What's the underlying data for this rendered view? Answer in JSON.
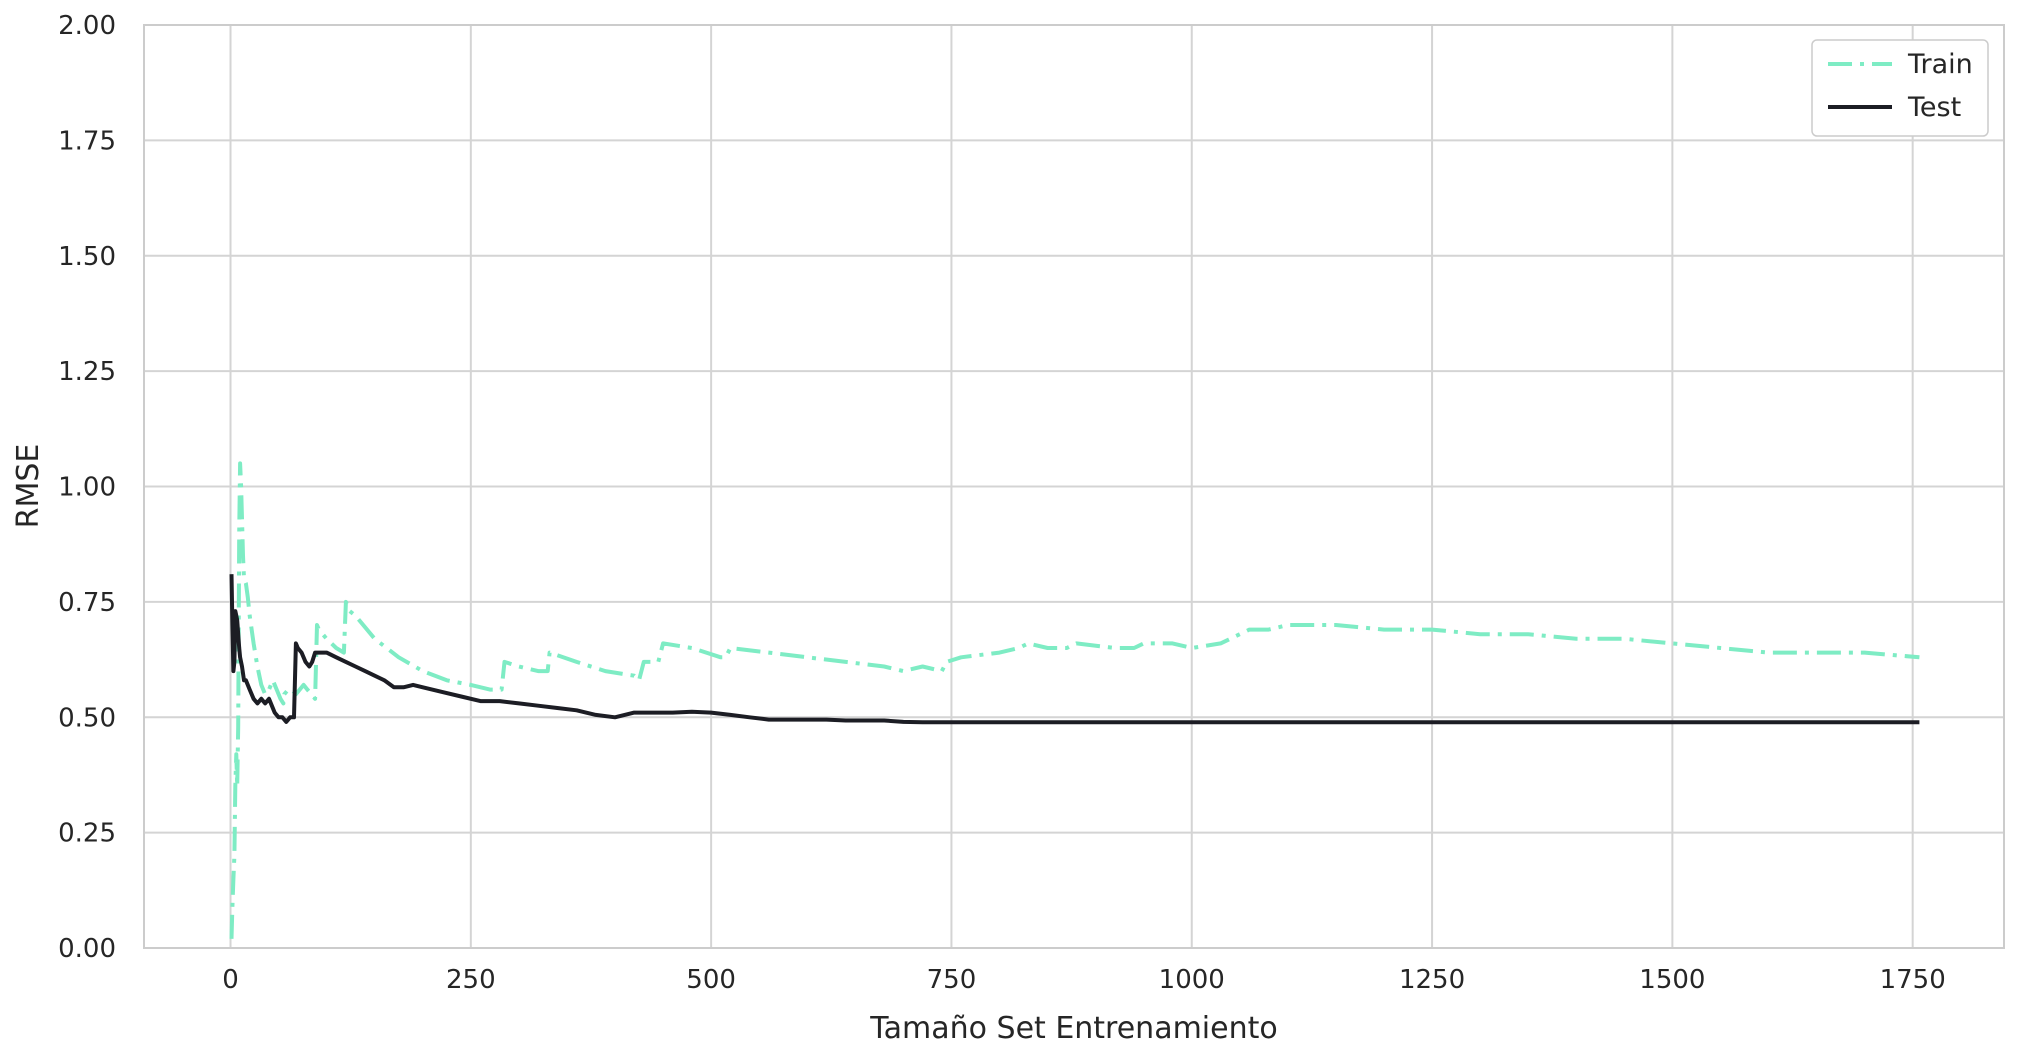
{
  "chart_data": {
    "type": "line",
    "title": "",
    "xlabel": "Tamaño Set Entrenamiento",
    "ylabel": "RMSE",
    "xlim": [
      -90,
      1845
    ],
    "ylim": [
      0,
      2
    ],
    "xticks": [
      0,
      250,
      500,
      750,
      1000,
      1250,
      1500,
      1750
    ],
    "yticks": [
      0,
      0.25,
      0.5,
      0.75,
      1.0,
      1.25,
      1.5,
      1.75,
      2.0
    ],
    "xtick_labels": [
      "0",
      "250",
      "500",
      "750",
      "1000",
      "1250",
      "1500",
      "1750"
    ],
    "ytick_labels": [
      "0.00",
      "0.25",
      "0.50",
      "0.75",
      "1.00",
      "1.25",
      "1.50",
      "1.75",
      "2.00"
    ],
    "grid": true,
    "legend_position": "top-right",
    "series": [
      {
        "name": "Train",
        "color": "#7eecc4",
        "style": "dashdot",
        "x": [
          1,
          2,
          3,
          4,
          5,
          6,
          7,
          8,
          9,
          10,
          11,
          12,
          13,
          14,
          16,
          18,
          20,
          24,
          28,
          32,
          36,
          40,
          44,
          48,
          52,
          55,
          56,
          60,
          64,
          68,
          72,
          76,
          80,
          84,
          88,
          90,
          92,
          100,
          110,
          118,
          120,
          124,
          130,
          150,
          175,
          200,
          225,
          250,
          270,
          282,
          285,
          300,
          320,
          330,
          332,
          360,
          390,
          420,
          425,
          430,
          445,
          450,
          480,
          510,
          515,
          520,
          560,
          600,
          640,
          680,
          700,
          720,
          740,
          745,
          760,
          800,
          820,
          830,
          850,
          870,
          880,
          920,
          940,
          950,
          980,
          1000,
          1030,
          1040,
          1060,
          1080,
          1100,
          1120,
          1150,
          1200,
          1250,
          1300,
          1350,
          1400,
          1450,
          1500,
          1550,
          1600,
          1650,
          1660,
          1700,
          1757
        ],
        "values": [
          0.02,
          0.09,
          0.15,
          0.2,
          0.35,
          0.42,
          0.35,
          0.48,
          0.9,
          1.05,
          1.0,
          0.93,
          0.85,
          0.8,
          0.79,
          0.76,
          0.72,
          0.66,
          0.61,
          0.57,
          0.55,
          0.56,
          0.58,
          0.56,
          0.54,
          0.53,
          0.55,
          0.56,
          0.56,
          0.55,
          0.56,
          0.57,
          0.56,
          0.55,
          0.54,
          0.7,
          0.69,
          0.67,
          0.65,
          0.64,
          0.75,
          0.73,
          0.72,
          0.67,
          0.63,
          0.6,
          0.58,
          0.57,
          0.56,
          0.56,
          0.62,
          0.61,
          0.6,
          0.6,
          0.64,
          0.62,
          0.6,
          0.59,
          0.58,
          0.62,
          0.62,
          0.66,
          0.65,
          0.63,
          0.63,
          0.65,
          0.64,
          0.63,
          0.62,
          0.61,
          0.6,
          0.61,
          0.6,
          0.62,
          0.63,
          0.64,
          0.65,
          0.66,
          0.65,
          0.65,
          0.66,
          0.65,
          0.65,
          0.66,
          0.66,
          0.65,
          0.66,
          0.67,
          0.69,
          0.69,
          0.7,
          0.7,
          0.7,
          0.69,
          0.69,
          0.68,
          0.68,
          0.67,
          0.67,
          0.66,
          0.65,
          0.64,
          0.64,
          0.64,
          0.64,
          0.63
        ]
      },
      {
        "name": "Test",
        "color": "#1c1d24",
        "style": "solid",
        "x": [
          1,
          2,
          3,
          4,
          5,
          6,
          7,
          8,
          9,
          10,
          12,
          14,
          16,
          20,
          24,
          28,
          32,
          36,
          40,
          46,
          50,
          54,
          58,
          62,
          66,
          68,
          70,
          74,
          78,
          82,
          85,
          88,
          92,
          100,
          110,
          120,
          130,
          140,
          150,
          160,
          170,
          180,
          190,
          200,
          220,
          240,
          260,
          280,
          300,
          320,
          340,
          360,
          380,
          400,
          420,
          440,
          460,
          480,
          500,
          520,
          540,
          560,
          580,
          600,
          620,
          640,
          660,
          680,
          700,
          720,
          760,
          800,
          900,
          1000,
          1100,
          1200,
          1300,
          1400,
          1500,
          1600,
          1700,
          1757
        ],
        "values": [
          0.81,
          0.7,
          0.6,
          0.62,
          0.73,
          0.72,
          0.71,
          0.68,
          0.65,
          0.63,
          0.61,
          0.58,
          0.58,
          0.56,
          0.54,
          0.53,
          0.54,
          0.53,
          0.54,
          0.51,
          0.5,
          0.5,
          0.49,
          0.5,
          0.5,
          0.66,
          0.65,
          0.64,
          0.62,
          0.61,
          0.62,
          0.64,
          0.64,
          0.64,
          0.63,
          0.62,
          0.61,
          0.6,
          0.59,
          0.58,
          0.565,
          0.565,
          0.57,
          0.565,
          0.555,
          0.545,
          0.535,
          0.535,
          0.53,
          0.525,
          0.52,
          0.515,
          0.505,
          0.5,
          0.51,
          0.51,
          0.51,
          0.512,
          0.51,
          0.505,
          0.5,
          0.495,
          0.495,
          0.495,
          0.495,
          0.493,
          0.493,
          0.493,
          0.49,
          0.489,
          0.489,
          0.489,
          0.489,
          0.489,
          0.489,
          0.489,
          0.489,
          0.489,
          0.489,
          0.489,
          0.489,
          0.489
        ]
      }
    ]
  }
}
